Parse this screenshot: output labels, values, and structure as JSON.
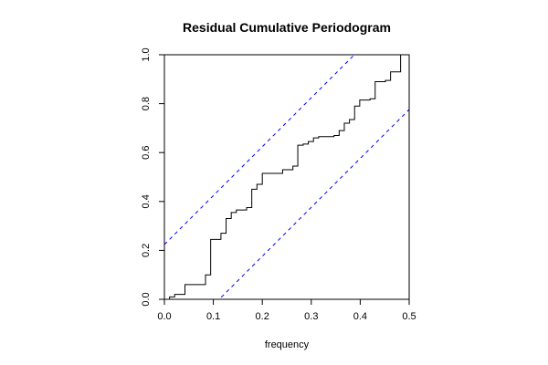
{
  "chart_data": {
    "type": "line",
    "title": "Residual Cumulative Periodogram",
    "xlabel": "frequency",
    "ylabel": "",
    "xlim": [
      0.0,
      0.5
    ],
    "ylim": [
      0.0,
      1.0
    ],
    "x_ticks": [
      "0.0",
      "0.1",
      "0.2",
      "0.3",
      "0.4",
      "0.5"
    ],
    "y_ticks": [
      "0.0",
      "0.2",
      "0.4",
      "0.6",
      "0.8",
      "1.0"
    ],
    "grid": false,
    "legend": "none",
    "series": [
      {
        "style": "step",
        "color": "#000000",
        "x": [
          0.0,
          0.0105,
          0.021,
          0.042,
          0.0525,
          0.084,
          0.0945,
          0.1155,
          0.126,
          0.1365,
          0.147,
          0.168,
          0.1785,
          0.189,
          0.2,
          0.2205,
          0.2415,
          0.252,
          0.2625,
          0.2725,
          0.2835,
          0.294,
          0.3045,
          0.315,
          0.3255,
          0.3465,
          0.357,
          0.3675,
          0.378,
          0.3885,
          0.399,
          0.4095,
          0.42,
          0.4305,
          0.441,
          0.4515,
          0.462,
          0.4725,
          0.4825,
          0.4925,
          0.5
        ],
        "y": [
          0.0,
          0.01,
          0.02,
          0.06,
          0.06,
          0.1,
          0.245,
          0.27,
          0.33,
          0.355,
          0.365,
          0.375,
          0.45,
          0.47,
          0.515,
          0.515,
          0.53,
          0.53,
          0.545,
          0.63,
          0.635,
          0.645,
          0.66,
          0.665,
          0.665,
          0.67,
          0.69,
          0.72,
          0.735,
          0.79,
          0.815,
          0.815,
          0.82,
          0.89,
          0.89,
          0.895,
          0.93,
          0.93,
          1.0,
          1.0,
          1.0
        ]
      },
      {
        "style": "dashed",
        "color": "#0000ff",
        "x": [
          0.0,
          0.5
        ],
        "y": [
          0.224,
          1.224
        ]
      },
      {
        "style": "dashed",
        "color": "#0000ff",
        "x": [
          0.0,
          0.5
        ],
        "y": [
          -0.224,
          0.776
        ]
      }
    ]
  }
}
